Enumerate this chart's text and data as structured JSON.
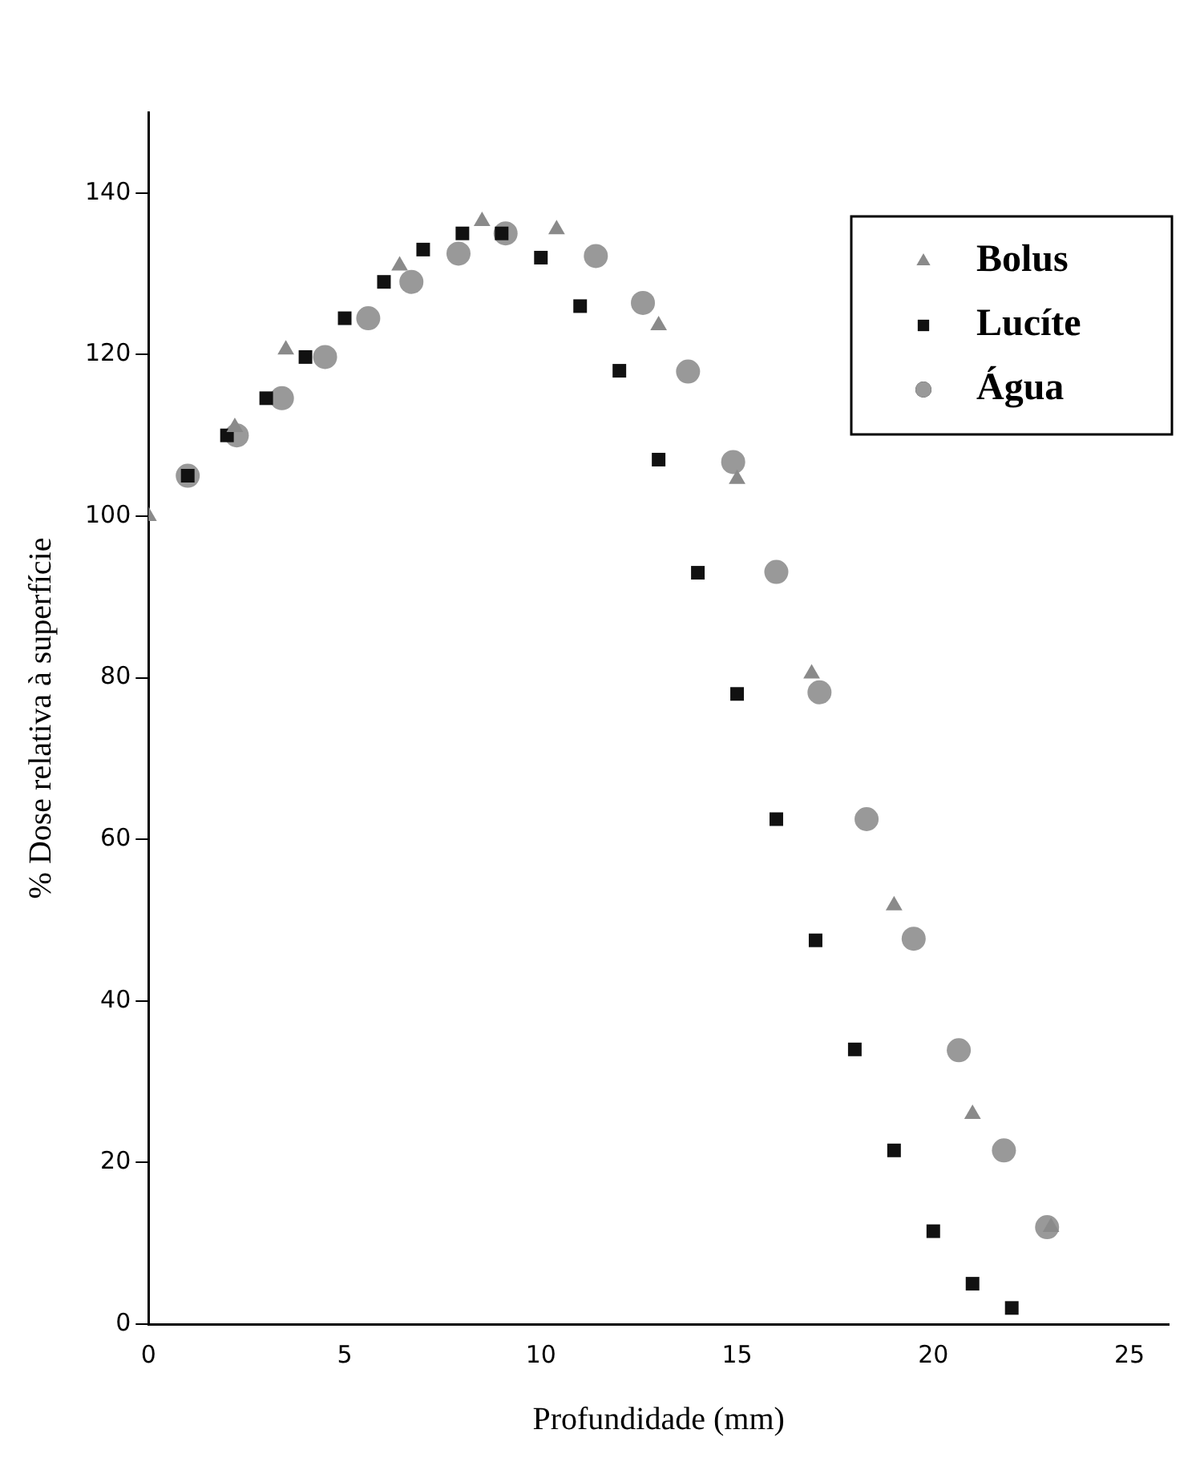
{
  "chart_data": {
    "type": "scatter",
    "xlabel": "Profundidade (mm)",
    "ylabel": "% Dose relativa à superfície",
    "xlim": [
      0,
      26
    ],
    "xticks": [
      0,
      5,
      10,
      15,
      20,
      25
    ],
    "ylim": [
      0,
      150
    ],
    "yticks": [
      0,
      20,
      40,
      60,
      80,
      100,
      120,
      140
    ],
    "grid": false,
    "legend": "top right",
    "series": [
      {
        "name": "Bolus",
        "color": "#8a8a8a",
        "marker": "triangle",
        "x": [
          0,
          2.2,
          3.5,
          6.4,
          8.5,
          10.4,
          13.0,
          15.0,
          16.9,
          19.0,
          21.0,
          23.0
        ],
        "values": [
          100,
          111,
          120.6,
          131,
          136.5,
          135.5,
          123.6,
          104.6,
          80.5,
          51.8,
          26,
          12
        ]
      },
      {
        "name": "Lucíte",
        "color": "#111111",
        "marker": "square",
        "x": [
          1,
          2,
          3,
          4,
          5,
          6,
          7,
          8,
          9,
          10,
          11,
          12,
          13,
          14,
          15,
          16,
          17,
          18,
          19,
          20,
          21,
          22
        ],
        "values": [
          105,
          110,
          114.6,
          119.7,
          124.5,
          129,
          133,
          135,
          135,
          132,
          126,
          118,
          107,
          93,
          78,
          62.5,
          47.5,
          34,
          21.5,
          11.5,
          5,
          2
        ]
      },
      {
        "name": "Água",
        "color": "#999999",
        "marker": "circle",
        "x": [
          1.0,
          2.25,
          3.4,
          4.5,
          5.6,
          6.7,
          7.9,
          9.1,
          11.4,
          12.6,
          13.75,
          14.9,
          16.0,
          17.1,
          18.3,
          19.5,
          20.65,
          21.8,
          22.9
        ],
        "values": [
          105,
          110,
          114.6,
          119.7,
          124.5,
          129,
          132.5,
          135,
          132.2,
          126.4,
          117.9,
          106.7,
          93.1,
          78.2,
          62.5,
          47.7,
          33.9,
          21.5,
          12
        ]
      }
    ]
  }
}
